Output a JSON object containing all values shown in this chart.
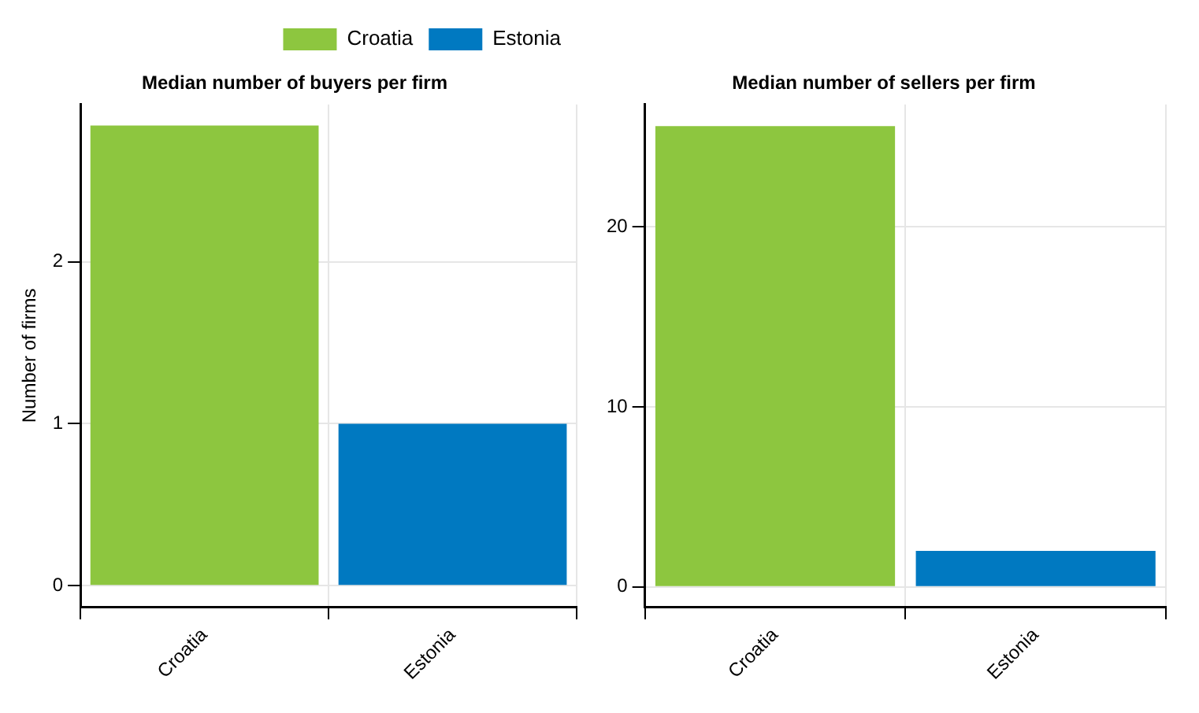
{
  "chart_data": [
    {
      "type": "bar",
      "title": "Median number of buyers per firm",
      "ylabel": "Number of firms",
      "categories": [
        "Croatia",
        "Estonia"
      ],
      "stacked": true,
      "series": [
        {
          "name": "Croatia",
          "color": "#8dc63f",
          "values": [
            2.84,
            null
          ]
        },
        {
          "name": "Estonia",
          "color": "#0079c1",
          "values": [
            null,
            1.0
          ]
        }
      ],
      "ylim": [
        -0.13,
        2.97
      ],
      "yticks": [
        0,
        1,
        2
      ],
      "grid": true,
      "legend": "top"
    },
    {
      "type": "bar",
      "title": "Median number of sellers per firm",
      "categories": [
        "Croatia",
        "Estonia"
      ],
      "stacked": true,
      "series": [
        {
          "color": "#8dc63f",
          "values": [
            25.6,
            null
          ]
        },
        {
          "color": "#0079c1",
          "values": [
            null,
            2.0
          ]
        }
      ],
      "ylim": [
        -1.1,
        26.8
      ],
      "yticks": [
        0,
        10,
        20
      ],
      "grid": true
    }
  ]
}
